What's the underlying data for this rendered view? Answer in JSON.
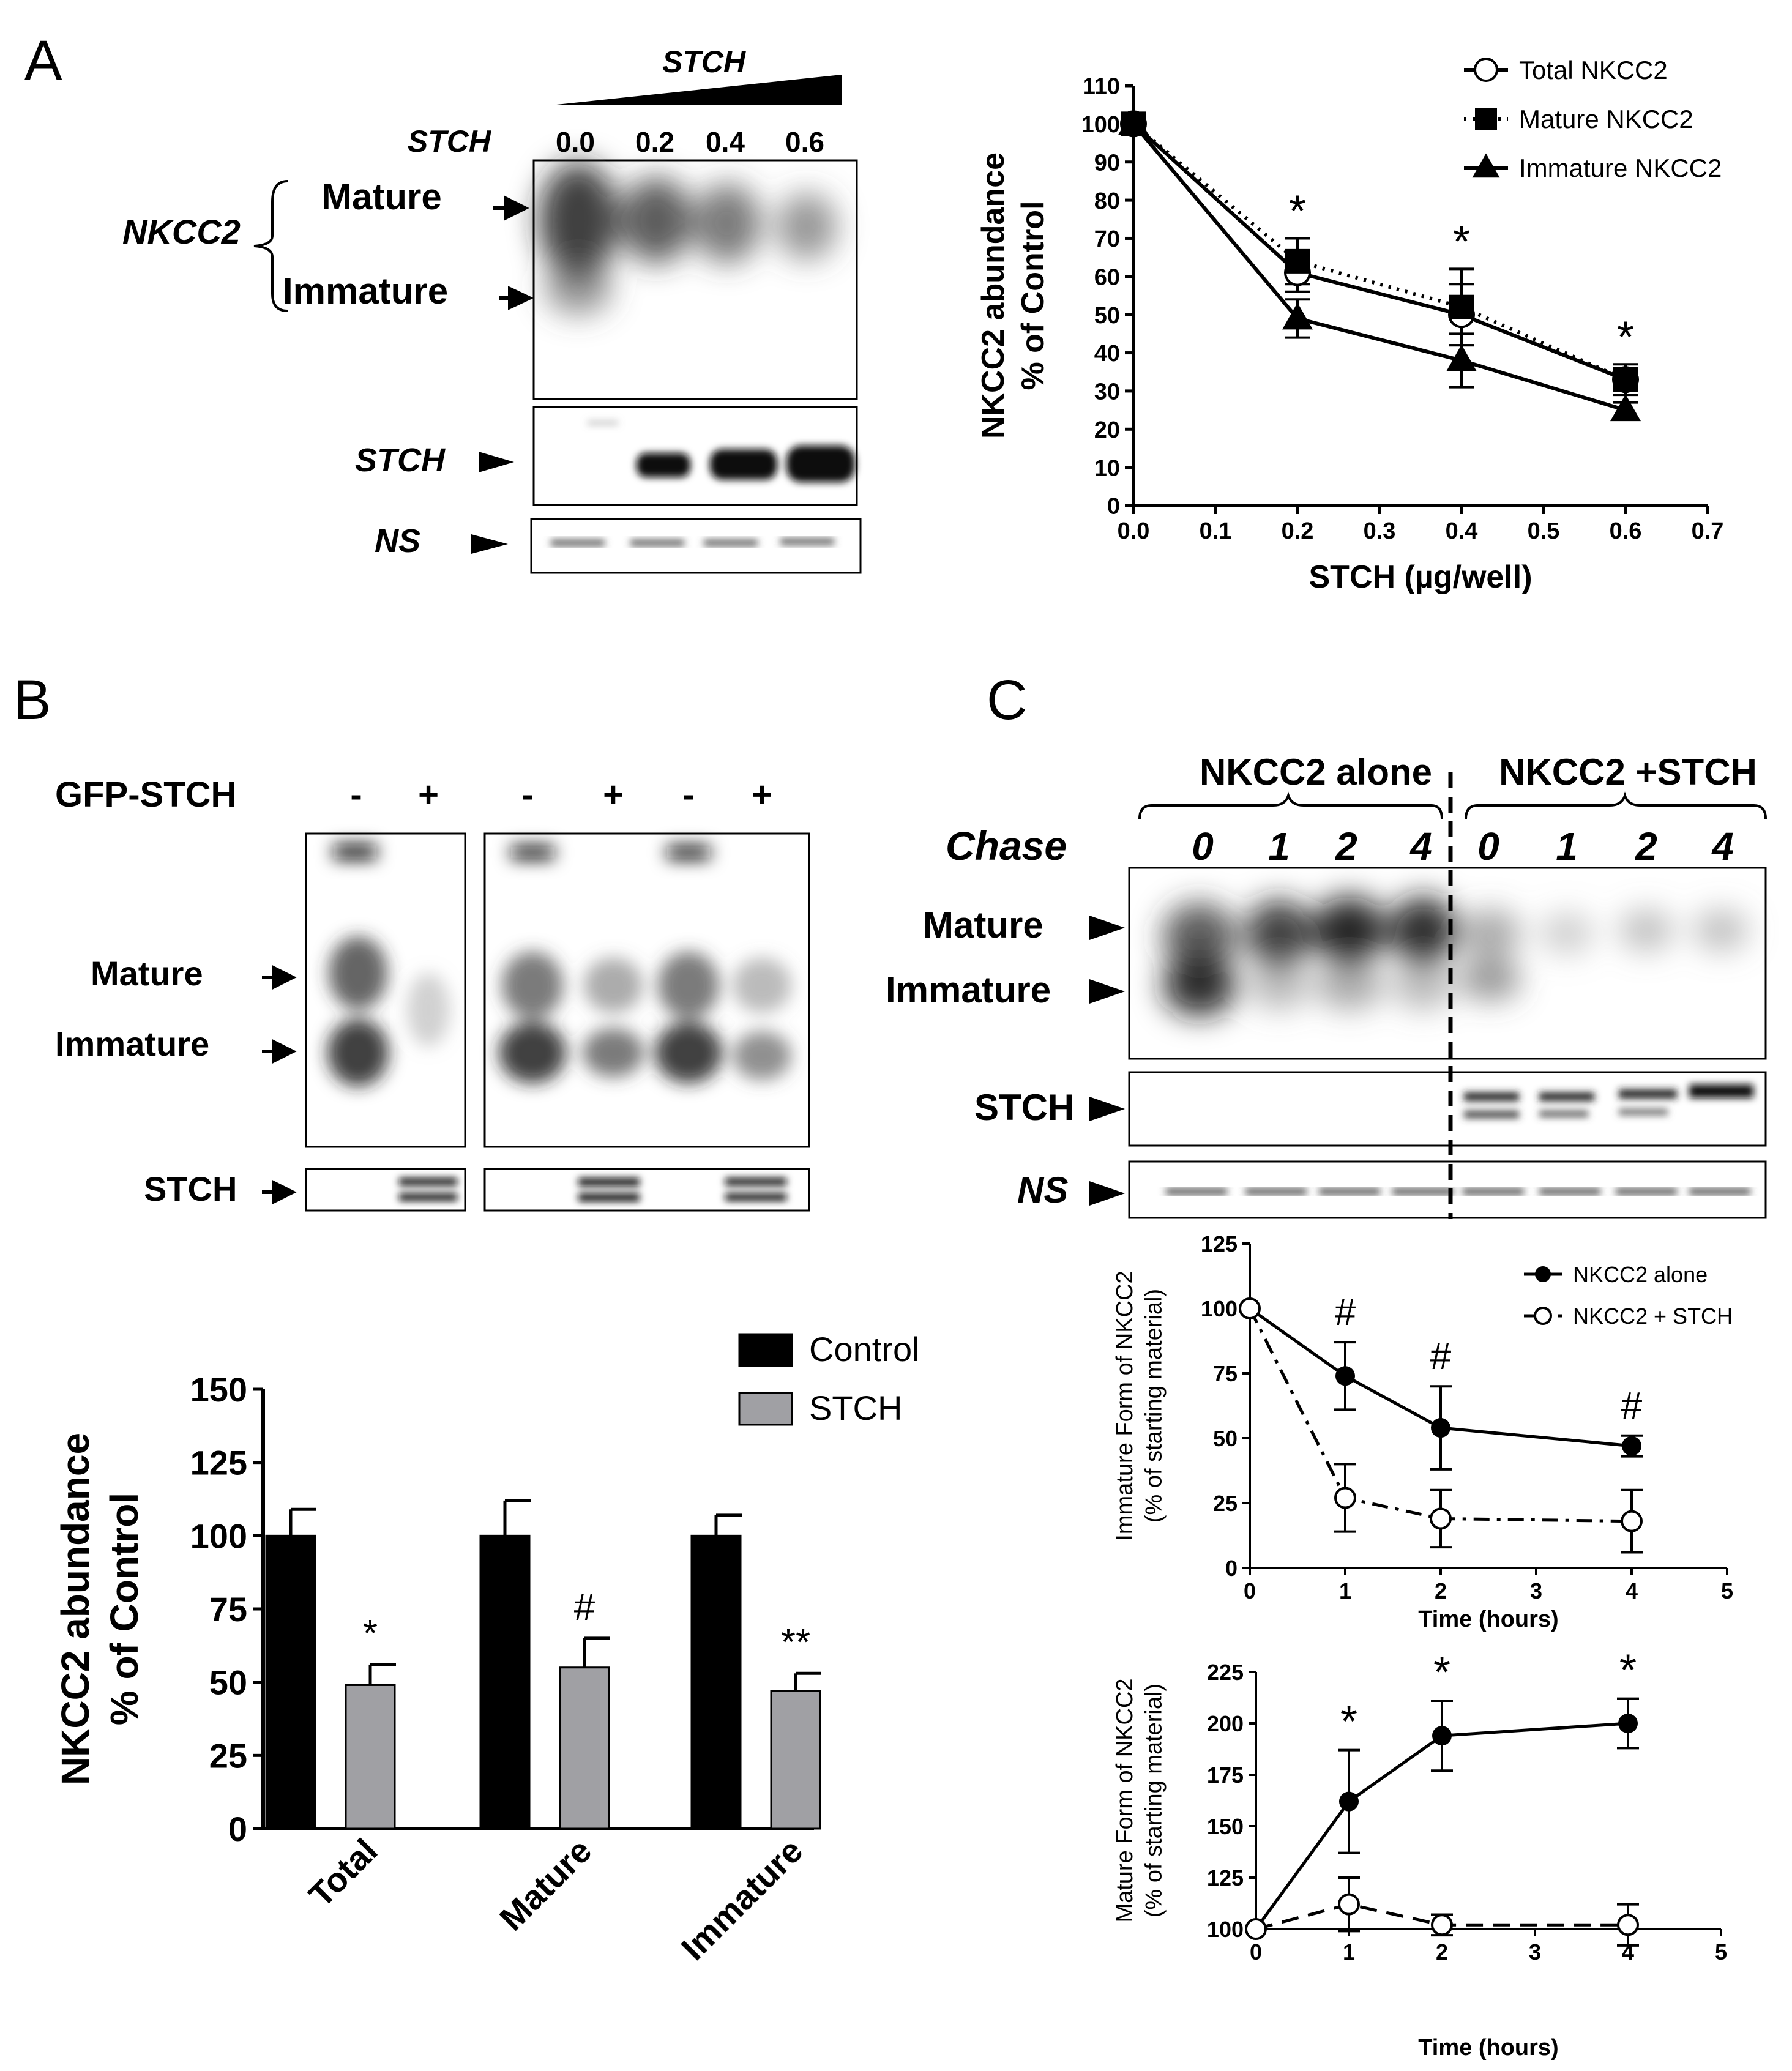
{
  "panels": {
    "A": {
      "letter": "A",
      "blot": {
        "gradient_label": "STCH",
        "row_label": "STCH",
        "doses": [
          "0.0",
          "0.2",
          "0.4",
          "0.6"
        ],
        "protein_label": "NKCC2",
        "band_labels": [
          "Mature",
          "Immature"
        ],
        "lower_labels": [
          "STCH",
          "NS"
        ]
      }
    },
    "B": {
      "letter": "B",
      "blot": {
        "treatment_label": "GFP-STCH",
        "signs": [
          "-",
          "+",
          "-",
          "+",
          "-",
          "+"
        ],
        "band_labels": [
          "Mature",
          "Immature"
        ],
        "lower_label": "STCH"
      }
    },
    "C": {
      "letter": "C",
      "blot": {
        "group_labels": [
          "NKCC2 alone",
          "NKCC2 +STCH"
        ],
        "chase_label": "Chase",
        "chase_times": [
          "0",
          "1",
          "2",
          "4",
          "0",
          "1",
          "2",
          "4"
        ],
        "band_labels": [
          "Mature",
          "Immature"
        ],
        "lower_labels": [
          "STCH",
          "NS"
        ]
      }
    }
  },
  "colors": {
    "black": "#000000",
    "grey": "#a0a0a4",
    "white": "#ffffff"
  },
  "chart_data": [
    {
      "id": "A",
      "type": "line",
      "xlabel": "STCH (µg/well)",
      "ylabel": [
        "NKCC2 abundance",
        "% of Control"
      ],
      "xlim": [
        0,
        0.7
      ],
      "ylim": [
        0,
        110
      ],
      "xticks": [
        "0.0",
        "0.1",
        "0.2",
        "0.3",
        "0.4",
        "0.5",
        "0.6",
        "0.7"
      ],
      "yticks": [
        0,
        10,
        20,
        30,
        40,
        50,
        60,
        70,
        80,
        90,
        100,
        110
      ],
      "x": [
        0,
        0.2,
        0.4,
        0.6
      ],
      "legend_position": "top-right",
      "series": [
        {
          "name": "Total NKCC2",
          "marker": "open-circle",
          "line": "solid",
          "values": [
            100,
            61,
            50,
            33
          ],
          "err": [
            1,
            5,
            8,
            3
          ]
        },
        {
          "name": "Mature NKCC2",
          "marker": "square",
          "line": "dotted",
          "values": [
            100,
            64,
            52,
            33
          ],
          "err": [
            1,
            6,
            10,
            4
          ]
        },
        {
          "name": "Immature NKCC2",
          "marker": "triangle",
          "line": "solid",
          "values": [
            100,
            49,
            38,
            25
          ],
          "err": [
            1,
            5,
            7,
            2
          ]
        }
      ],
      "annotations": [
        {
          "x": 0.2,
          "text": "*"
        },
        {
          "x": 0.4,
          "text": "*"
        },
        {
          "x": 0.6,
          "text": "*"
        }
      ]
    },
    {
      "id": "B",
      "type": "bar",
      "ylabel": [
        "NKCC2 abundance",
        "% of Control"
      ],
      "ylim": [
        0,
        150
      ],
      "yticks": [
        0,
        25,
        50,
        75,
        100,
        125,
        150
      ],
      "categories": [
        "Total",
        "Mature",
        "Immature"
      ],
      "legend_position": "top-right",
      "series": [
        {
          "name": "Control",
          "color": "#000000",
          "values": [
            100,
            100,
            100
          ],
          "err": [
            9,
            12,
            7
          ]
        },
        {
          "name": "STCH",
          "color": "#a0a0a4",
          "values": [
            49,
            55,
            47
          ],
          "err": [
            7,
            10,
            6
          ]
        }
      ],
      "annotations": [
        "*",
        "#",
        "**"
      ]
    },
    {
      "id": "C-immature",
      "type": "line",
      "xlabel": "Time (hours)",
      "ylabel": [
        "Immature Form of NKCC2",
        "(% of starting material)"
      ],
      "xlim": [
        0,
        5
      ],
      "ylim": [
        0,
        125
      ],
      "xticks": [
        "0",
        "1",
        "2",
        "3",
        "4",
        "5"
      ],
      "yticks": [
        0,
        25,
        50,
        75,
        100,
        125
      ],
      "x": [
        0,
        1,
        2,
        4
      ],
      "legend_position": "top-right",
      "series": [
        {
          "name": "NKCC2 alone",
          "marker": "filled-circle",
          "line": "solid",
          "values": [
            100,
            74,
            54,
            47
          ],
          "err": [
            0,
            13,
            16,
            4
          ]
        },
        {
          "name": "NKCC2 + STCH",
          "marker": "open-circle",
          "line": "dash-dot",
          "values": [
            100,
            27,
            19,
            18
          ],
          "err": [
            0,
            13,
            11,
            12
          ]
        }
      ],
      "annotations": [
        {
          "x": 1,
          "text": "#"
        },
        {
          "x": 2,
          "text": "#"
        },
        {
          "x": 4,
          "text": "#"
        }
      ]
    },
    {
      "id": "C-mature",
      "type": "line",
      "xlabel": "Time (hours)",
      "ylabel": [
        "Mature Form of NKCC2",
        "(% of starting material)"
      ],
      "xlim": [
        0,
        5
      ],
      "ylim": [
        100,
        225
      ],
      "xticks": [
        "0",
        "1",
        "2",
        "3",
        "4",
        "5"
      ],
      "yticks": [
        100,
        125,
        150,
        175,
        200,
        225
      ],
      "x": [
        0,
        1,
        2,
        4
      ],
      "series": [
        {
          "name": "NKCC2 alone",
          "marker": "filled-circle",
          "line": "solid",
          "values": [
            100,
            162,
            194,
            200
          ],
          "err": [
            0,
            25,
            17,
            12
          ]
        },
        {
          "name": "NKCC2 + STCH",
          "marker": "open-circle",
          "line": "dashed",
          "values": [
            100,
            112,
            102,
            102
          ],
          "err": [
            0,
            13,
            5,
            10
          ]
        }
      ],
      "annotations": [
        {
          "x": 1,
          "text": "*"
        },
        {
          "x": 2,
          "text": "*"
        },
        {
          "x": 4,
          "text": "*"
        }
      ]
    }
  ]
}
